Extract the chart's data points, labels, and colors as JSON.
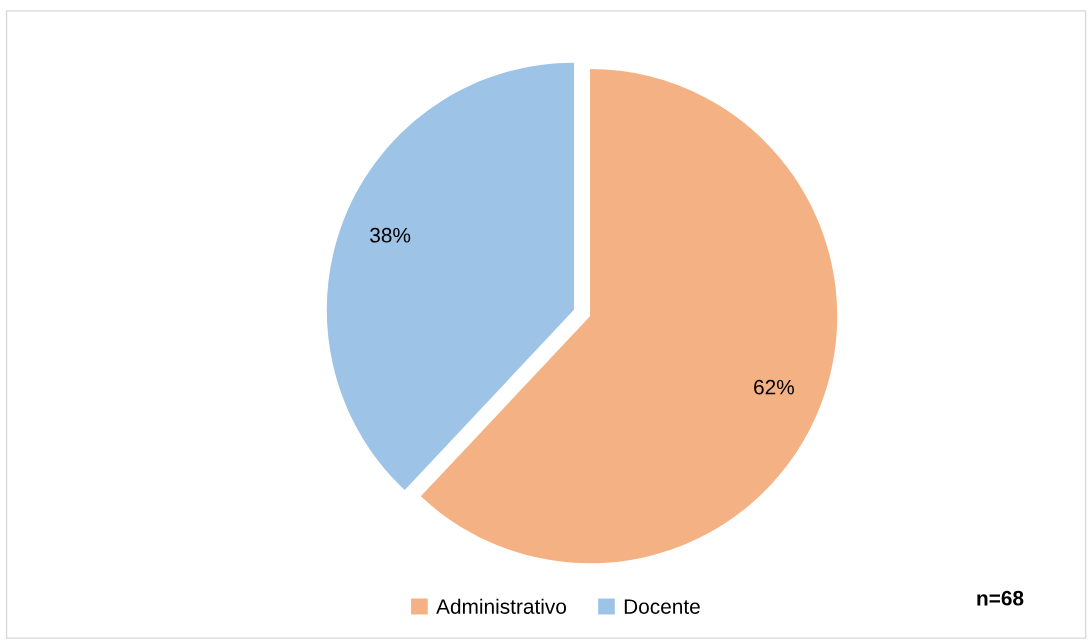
{
  "chart_data": {
    "type": "pie",
    "categories": [
      "Administrativo",
      "Docente"
    ],
    "values": [
      62,
      38
    ],
    "value_labels": [
      "62%",
      "38%"
    ],
    "colors": [
      "#f4b183",
      "#9dc3e6"
    ],
    "legend": "bottom",
    "annotations": [
      "n=68"
    ]
  }
}
